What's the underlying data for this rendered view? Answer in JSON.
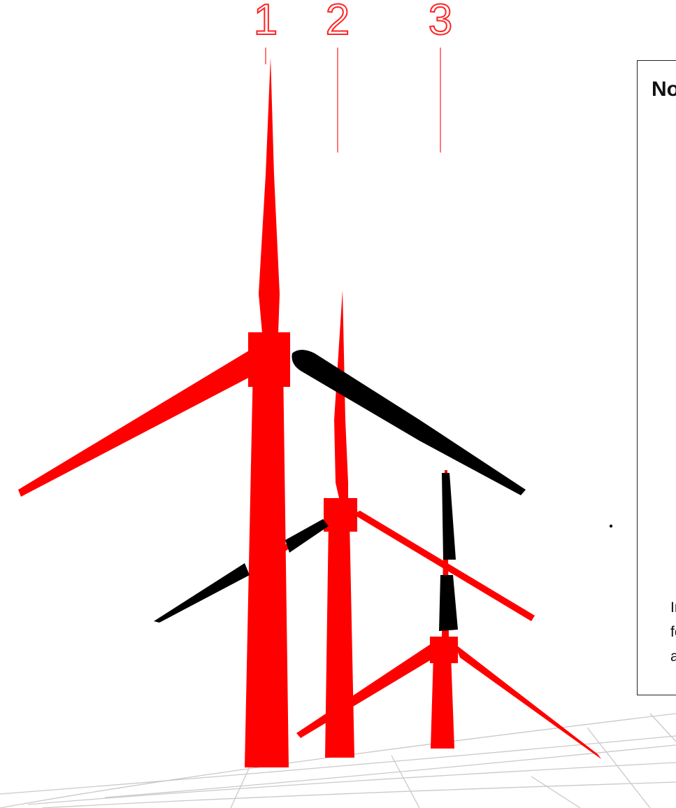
{
  "labels": [
    "1",
    "2",
    "3"
  ],
  "note": {
    "title": "No",
    "lines": [
      "In",
      "fo",
      "a"
    ]
  },
  "colors": {
    "turbine": "#ff0000",
    "marker": "#000000",
    "grid": "#c8c8c8",
    "label": "#ff2222"
  }
}
